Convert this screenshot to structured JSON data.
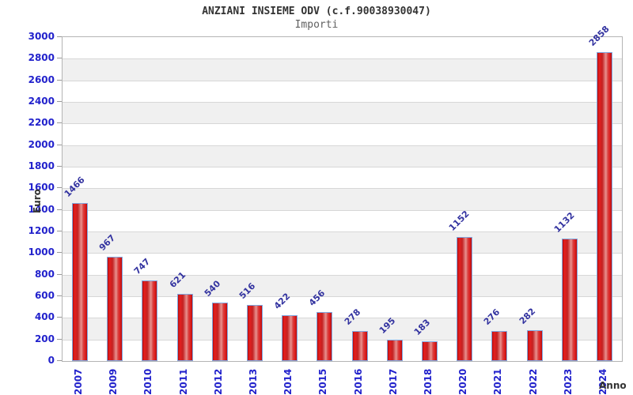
{
  "header": {
    "title": "ANZIANI INSIEME ODV (c.f.90038930047)",
    "subtitle": "Importi"
  },
  "chart_data": {
    "type": "bar",
    "title": "ANZIANI INSIEME ODV (c.f.90038930047)",
    "subtitle": "Importi",
    "xlabel": "Anno",
    "ylabel": "Euro",
    "categories": [
      "2007",
      "2009",
      "2010",
      "2011",
      "2012",
      "2013",
      "2014",
      "2015",
      "2016",
      "2017",
      "2018",
      "2020",
      "2021",
      "2022",
      "2023",
      "2024"
    ],
    "values": [
      1466,
      967,
      747,
      621,
      540,
      516,
      422,
      456,
      278,
      195,
      183,
      1152,
      276,
      282,
      1132,
      2858
    ],
    "ylim": [
      0,
      3000
    ],
    "ytick_step": 200,
    "grid": true,
    "legend": false,
    "alternating_bands": true,
    "colors": {
      "axis_label_blue": "#2222cc",
      "value_label_navy": "#3333a0",
      "bar_red_dark": "#b80d0d",
      "bar_red_bright": "#e51f1f",
      "bar_red_light_center": "#e8918d",
      "bar_border_blue": "#7fa8e0",
      "band_gray": "#f0f0f0",
      "gridline_gray": "#d7d7d7",
      "plot_border_gray": "#b4b4b4",
      "title_gray": "#333333",
      "subtitle_gray": "#606060"
    }
  }
}
